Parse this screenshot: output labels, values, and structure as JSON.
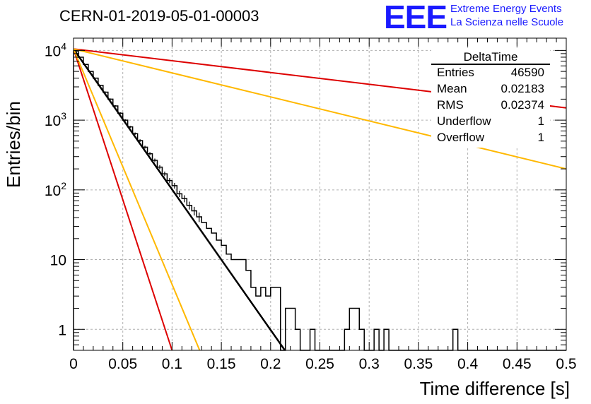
{
  "header": {
    "run_title": "CERN-01-2019-05-01-00003",
    "logo_text": "EEE",
    "logo_line1": "Extreme Energy Events",
    "logo_line2": "La Scienza nelle Scuole"
  },
  "stats_box": {
    "title": "DeltaTime",
    "rows": [
      {
        "key": "Entries",
        "value": "46590"
      },
      {
        "key": "Mean",
        "value": "0.02183"
      },
      {
        "key": "RMS",
        "value": "0.02374"
      },
      {
        "key": "Underflow",
        "value": "1"
      },
      {
        "key": "Overflow",
        "value": "1"
      }
    ]
  },
  "chart_data": {
    "type": "histogram",
    "xlabel": "Time difference [s]",
    "ylabel": "Entries/bin",
    "xlim": [
      0,
      0.5
    ],
    "ylim": [
      0.5,
      15000
    ],
    "yscale": "log",
    "grid": true,
    "x_ticks": [
      "0",
      "0.05",
      "0.1",
      "0.15",
      "0.2",
      "0.25",
      "0.3",
      "0.35",
      "0.4",
      "0.45",
      "0.5"
    ],
    "y_ticks": [
      {
        "value": 1,
        "label": "1"
      },
      {
        "value": 10,
        "label": "10"
      },
      {
        "value": 100,
        "label": "10",
        "exp": "2"
      },
      {
        "value": 1000,
        "label": "10",
        "exp": "3"
      },
      {
        "value": 10000,
        "label": "10",
        "exp": "4"
      }
    ],
    "histogram": {
      "name": "DeltaTime",
      "color": "#000000",
      "bin_width": 0.005,
      "x_start": 0,
      "values": [
        9800,
        8000,
        6300,
        5000,
        4000,
        3150,
        2520,
        2000,
        1600,
        1260,
        1000,
        800,
        640,
        510,
        410,
        330,
        265,
        212,
        170,
        136,
        115,
        88,
        75,
        60,
        50,
        41,
        34,
        28,
        24,
        19,
        16,
        12,
        10,
        10,
        10,
        7,
        4,
        3,
        4,
        3,
        4,
        4,
        0.5,
        2,
        2,
        1,
        0.5,
        0.5,
        1,
        0.5,
        0.5,
        0.5,
        0.5,
        0.5,
        0.5,
        1,
        2,
        2,
        1,
        0.5,
        0.5,
        1,
        0.5,
        1,
        0.5,
        0.5,
        0.5,
        0.5,
        0.5,
        0.5,
        0.5,
        0.5,
        0.5,
        0.5,
        0.5,
        0.5,
        0.5,
        1,
        0.5,
        0.5,
        0.5,
        0.5,
        0.5,
        0.5,
        0.5,
        0.5,
        0.5,
        0.5,
        0.5,
        0.5,
        0.5,
        0.5,
        0.5,
        0.5,
        0.5,
        0.5,
        0.5,
        0.5,
        0.5,
        0.5
      ]
    },
    "lines": [
      {
        "color": "#000000",
        "width": 2.5,
        "points": [
          [
            0,
            10500
          ],
          [
            0.2145,
            0.5
          ]
        ]
      },
      {
        "color": "#dd0000",
        "width": 2,
        "points": [
          [
            0,
            10500
          ],
          [
            0.1,
            0.5
          ]
        ]
      },
      {
        "color": "#ffb800",
        "width": 2,
        "points": [
          [
            0,
            10500
          ],
          [
            0.128,
            0.5
          ]
        ]
      },
      {
        "color": "#dd0000",
        "width": 2,
        "points": [
          [
            0,
            10500
          ],
          [
            0.5,
            1500
          ]
        ]
      },
      {
        "color": "#ffb800",
        "width": 2,
        "points": [
          [
            0,
            10500
          ],
          [
            0.5,
            200
          ]
        ]
      }
    ]
  }
}
